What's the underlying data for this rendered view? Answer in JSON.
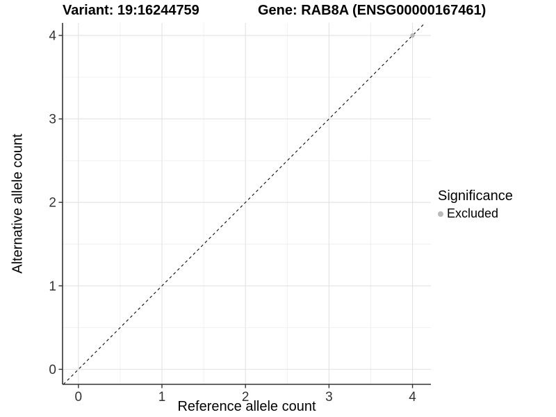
{
  "chart_data": {
    "type": "scatter",
    "titles": [
      "Variant: 19:16244759",
      "Gene: RAB8A (ENSG00000167461)"
    ],
    "xlabel": "Reference allele count",
    "ylabel": "Alternative allele count",
    "xlim": [
      -0.19,
      4.22
    ],
    "ylim": [
      -0.18,
      4.15
    ],
    "xticks": [
      0,
      1,
      2,
      3,
      4
    ],
    "yticks": [
      0,
      1,
      2,
      3,
      4
    ],
    "grid": {
      "major": true,
      "minor": true,
      "major_color": "#e2e2e2",
      "minor_color": "#efefef"
    },
    "axis_color": "#333333",
    "identity_line": {
      "slope": 1,
      "intercept": 0,
      "style": "dashed",
      "color": "#1a1a1a"
    },
    "series": [
      {
        "name": "Excluded",
        "color": "#bababa",
        "points": [
          {
            "x": 4,
            "y": 4
          }
        ]
      }
    ],
    "legend": {
      "title": "Significance",
      "position": "right",
      "entries": [
        {
          "label": "Excluded",
          "color": "#bababa"
        }
      ]
    }
  }
}
